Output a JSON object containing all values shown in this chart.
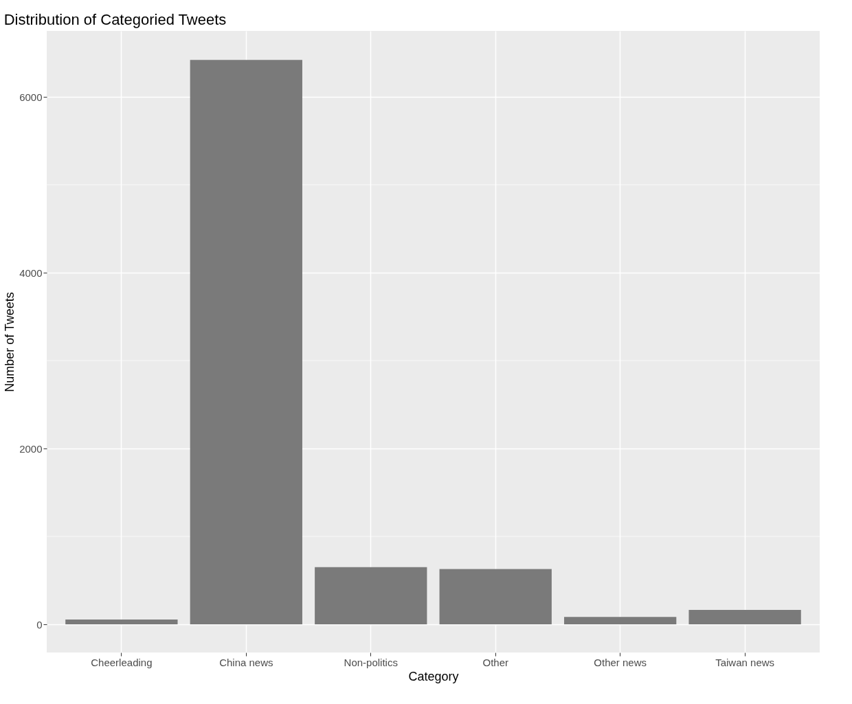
{
  "chart_data": {
    "type": "bar",
    "title": "Distribution of Categoried Tweets",
    "xlabel": "Category",
    "ylabel": "Number of Tweets",
    "categories": [
      "Cheerleading",
      "China news",
      "Non-politics",
      "Other",
      "Other news",
      "Taiwan news"
    ],
    "values": [
      55,
      6420,
      650,
      630,
      85,
      165
    ],
    "color": "#7a7a7a",
    "ylim": [
      -320,
      6750
    ],
    "yticks": [
      0,
      2000,
      4000,
      6000
    ],
    "grid": true
  }
}
